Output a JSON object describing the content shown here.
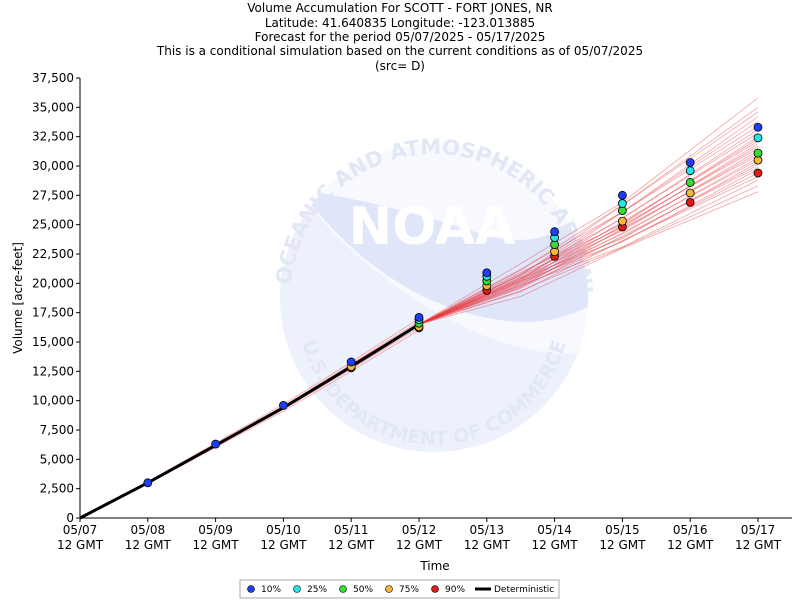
{
  "titles": [
    "Volume Accumulation For SCOTT - FORT JONES, NR",
    "Latitude: 41.640835 Longitude: -123.013885",
    "Forecast for the period 05/07/2025 - 05/17/2025",
    "This is a conditional simulation based on the current conditions as of 05/07/2025",
    "(src= D)"
  ],
  "watermark": {
    "center_text": "NOAA",
    "ring_text": "NATIONAL OCEANIC AND ATMOSPHERIC ADMINISTRATION",
    "bottom_text": "U.S. DEPARTMENT OF COMMERCE"
  },
  "chart_data": {
    "type": "scatter",
    "xlabel": "Time",
    "ylabel": "Volume [acre-feet]",
    "x_ticks": [
      "05/07",
      "05/08",
      "05/09",
      "05/10",
      "05/11",
      "05/12",
      "05/13",
      "05/14",
      "05/15",
      "05/16",
      "05/17"
    ],
    "x_tick_sub": "12 GMT",
    "ylim": [
      0,
      37500
    ],
    "y_ticks": [
      0,
      2500,
      5000,
      7500,
      10000,
      12500,
      15000,
      17500,
      20000,
      22500,
      25000,
      27500,
      30000,
      32500,
      35000,
      37500
    ],
    "y_tick_labels": [
      "0",
      "2,500",
      "5,000",
      "7,500",
      "10,000",
      "12,500",
      "15,000",
      "17,500",
      "20,000",
      "22,500",
      "25,000",
      "27,500",
      "30,000",
      "32,500",
      "35,000",
      "37,500"
    ],
    "grid": false,
    "legend_placement": "bottom-center",
    "deterministic": {
      "name": "Deterministic",
      "color": "#000000",
      "x": [
        "05/07",
        "05/08",
        "05/09",
        "05/10",
        "05/11",
        "05/12"
      ],
      "values": [
        0,
        3000,
        6200,
        9400,
        12900,
        16500
      ]
    },
    "traces": {
      "color": "#e8363c",
      "end_values": [
        27800,
        28300,
        28800,
        29100,
        29400,
        29700,
        29900,
        30100,
        30300,
        30500,
        30700,
        30900,
        31100,
        31300,
        31500,
        31700,
        31900,
        32100,
        32300,
        32500,
        32800,
        33100,
        33400,
        33800,
        34200,
        34600,
        35000,
        35800
      ]
    },
    "series": [
      {
        "name": "10%",
        "color": "#1f3ff5",
        "x": [
          "05/08",
          "05/09",
          "05/10",
          "05/11",
          "05/12",
          "05/13",
          "05/14",
          "05/15",
          "05/16",
          "05/17"
        ],
        "values": [
          3000,
          6300,
          9600,
          13300,
          17100,
          20900,
          24400,
          27500,
          30300,
          33300
        ]
      },
      {
        "name": "25%",
        "color": "#22e6e6",
        "x": [
          "05/12",
          "05/13",
          "05/14",
          "05/15",
          "05/16",
          "05/17"
        ],
        "values": [
          16900,
          20600,
          23900,
          26800,
          29600,
          32400
        ]
      },
      {
        "name": "50%",
        "color": "#33dd33",
        "x": [
          "05/12",
          "05/13",
          "05/14",
          "05/15",
          "05/16",
          "05/17"
        ],
        "values": [
          16600,
          20200,
          23300,
          26200,
          28600,
          31100
        ]
      },
      {
        "name": "75%",
        "color": "#f7b733",
        "x": [
          "05/11",
          "05/12",
          "05/13",
          "05/14",
          "05/15",
          "05/16",
          "05/17"
        ],
        "values": [
          12900,
          16300,
          19800,
          22700,
          25300,
          27700,
          30500
        ]
      },
      {
        "name": "90%",
        "color": "#e01919",
        "x": [
          "05/11",
          "05/12",
          "05/13",
          "05/14",
          "05/15",
          "05/16",
          "05/17"
        ],
        "values": [
          12800,
          16200,
          19400,
          22300,
          24800,
          26900,
          29400
        ]
      }
    ]
  }
}
